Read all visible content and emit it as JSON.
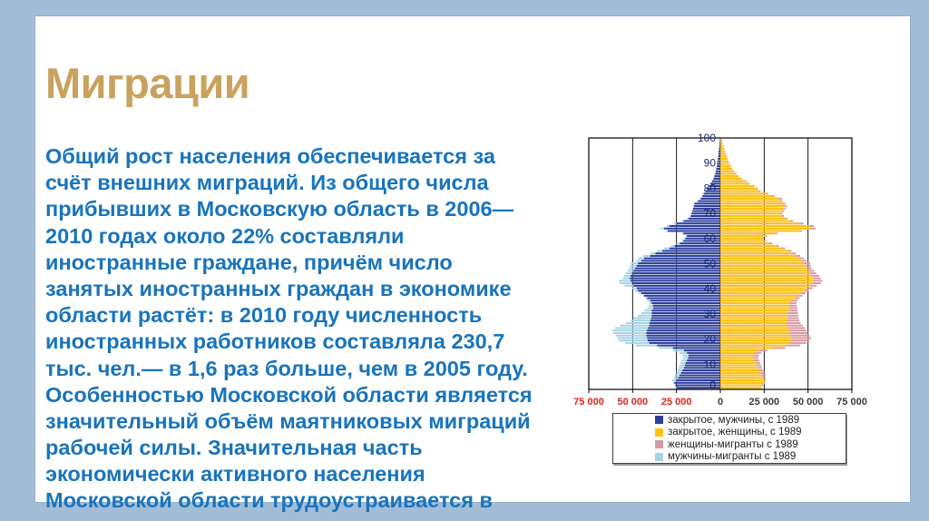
{
  "slide": {
    "title": "Миграции",
    "body_lines": [
      "Общий рост населения обеспечивается за",
      "счёт внешних миграций. Из общего числа",
      "прибывших в Московскую область в 2006—",
      "2010 годах около 22% составляли",
      "иностранные граждане, причём число",
      "занятых иностранных граждан в экономике",
      "области растёт: в 2010 году численность",
      "иностранных работников составляла 230,7",
      "тыс. чел.— в 1,6 раз больше, чем в 2005 году.",
      "Особенностью Московской области является",
      "значительный объём маятниковых миграций",
      "рабочей силы. Значительная часть",
      "экономически активного населения",
      "Московской области трудоустраивается в"
    ],
    "colors": {
      "background": "#A4BDD7",
      "card": "#FFFFFF",
      "title_text": "#C9A35E",
      "body_text": "#1874BC"
    }
  },
  "chart_data": {
    "type": "bar",
    "subtype": "population_pyramid",
    "orientation": "horizontal",
    "title": "",
    "xlabel": "",
    "ylabel": "",
    "grid": true,
    "legend_position": "bottom",
    "xlim": [
      -75000,
      75000
    ],
    "x_tick_values": [
      -75000,
      -50000,
      -25000,
      0,
      25000,
      50000,
      75000
    ],
    "x_tick_labels": [
      "75 000",
      "50 000",
      "25 000",
      "0",
      "25 000",
      "50 000",
      "75 000"
    ],
    "x_tick_colors": [
      "#E0251B",
      "#E0251B",
      "#E0251B",
      "#3A3A3A",
      "#3A3A3A",
      "#3A3A3A",
      "#3A3A3A"
    ],
    "age_axis_range": [
      0,
      100
    ],
    "age_tick_values": [
      0,
      10,
      20,
      30,
      40,
      50,
      60,
      70,
      80,
      90,
      100
    ],
    "age_tick_color": "#1C2C6B",
    "ages": [
      0,
      1,
      2,
      3,
      4,
      5,
      6,
      7,
      8,
      9,
      10,
      11,
      12,
      13,
      14,
      15,
      16,
      17,
      18,
      19,
      20,
      21,
      22,
      23,
      24,
      25,
      26,
      27,
      28,
      29,
      30,
      31,
      32,
      33,
      34,
      35,
      36,
      37,
      38,
      39,
      40,
      41,
      42,
      43,
      44,
      45,
      46,
      47,
      48,
      49,
      50,
      51,
      52,
      53,
      54,
      55,
      56,
      57,
      58,
      59,
      60,
      61,
      62,
      63,
      64,
      65,
      66,
      67,
      68,
      69,
      70,
      71,
      72,
      73,
      74,
      75,
      76,
      77,
      78,
      79,
      80,
      81,
      82,
      83,
      84,
      85,
      86,
      87,
      88,
      89,
      90,
      91,
      92,
      93,
      94,
      95,
      96,
      97,
      98,
      99,
      100
    ],
    "series": [
      {
        "name": "закрытое, мужчины, с 1989",
        "side": "left",
        "stack": "base",
        "color": "#2E3D9C",
        "values": [
          25000,
          25500,
          26200,
          25000,
          24100,
          23300,
          22400,
          21600,
          20700,
          20200,
          19800,
          19000,
          18400,
          18100,
          19000,
          20700,
          27000,
          36000,
          40500,
          41400,
          41700,
          42200,
          42200,
          41800,
          41200,
          40500,
          40300,
          39900,
          39400,
          39100,
          39100,
          39100,
          38200,
          38500,
          39100,
          39900,
          41700,
          43400,
          45100,
          46900,
          47700,
          49500,
          50300,
          51200,
          51600,
          51200,
          50300,
          49500,
          48600,
          47700,
          46900,
          45000,
          43400,
          40000,
          37000,
          33000,
          29000,
          26000,
          23000,
          21000,
          19800,
          19000,
          21000,
          30000,
          32000,
          29000,
          25000,
          21000,
          18100,
          16800,
          16400,
          15900,
          15500,
          15000,
          14700,
          12800,
          11200,
          10200,
          9500,
          8300,
          7800,
          6300,
          5700,
          4700,
          3900,
          3400,
          2900,
          2600,
          2300,
          2000,
          1900,
          1650,
          1450,
          1250,
          1100,
          1000,
          750,
          550,
          400,
          300,
          200
        ]
      },
      {
        "name": "закрытое, женщины, с 1989",
        "side": "right",
        "stack": "base",
        "color": "#FFC20D",
        "values": [
          23300,
          24000,
          25000,
          25300,
          24500,
          23800,
          22800,
          22000,
          21600,
          20800,
          20200,
          19500,
          19000,
          19200,
          19800,
          21600,
          30200,
          37100,
          39700,
          40500,
          40500,
          40000,
          39500,
          39000,
          38800,
          38300,
          37900,
          38000,
          38200,
          38500,
          38700,
          38900,
          39100,
          39500,
          39900,
          40800,
          42500,
          44200,
          46000,
          47800,
          49500,
          51200,
          52900,
          53300,
          52900,
          52100,
          51200,
          50300,
          49500,
          48600,
          47700,
          46400,
          45100,
          43000,
          41000,
          38800,
          35300,
          31900,
          28400,
          25000,
          24100,
          25900,
          31900,
          45700,
          51700,
          50900,
          45700,
          40000,
          37100,
          35300,
          34500,
          35300,
          36200,
          37100,
          36200,
          34500,
          32800,
          30200,
          26700,
          22400,
          20700,
          19000,
          16500,
          14700,
          12000,
          10300,
          9200,
          7800,
          6700,
          5800,
          5200,
          4500,
          3900,
          3400,
          3000,
          2600,
          2100,
          1700,
          1300,
          1000,
          600
        ]
      },
      {
        "name": "женщины-мигранты с 1989",
        "side": "right",
        "stack": "migrant",
        "color": "#D79AA5",
        "values": [
          200,
          300,
          400,
          500,
          1400,
          2100,
          2200,
          2400,
          2200,
          2500,
          2600,
          2700,
          2600,
          2800,
          3500,
          5100,
          6900,
          8600,
          9400,
          10400,
          11200,
          10900,
          10500,
          10100,
          9500,
          8700,
          7800,
          7100,
          6400,
          5900,
          5600,
          5200,
          4800,
          4100,
          3500,
          3100,
          2600,
          2600,
          2600,
          2500,
          3100,
          3700,
          4400,
          4900,
          4400,
          4300,
          3500,
          3100,
          2600,
          3000,
          3500,
          2600,
          2600,
          2500,
          2000,
          1700,
          1600,
          1400,
          1100,
          1000,
          700,
          600,
          600,
          800,
          2600,
          2500,
          1800,
          1500,
          1100,
          1000,
          900,
          900,
          900,
          900,
          900,
          800,
          2500,
          800,
          700,
          600,
          500,
          400,
          300,
          300,
          200,
          200,
          200,
          200,
          200,
          200,
          200,
          200,
          200,
          200,
          100,
          100,
          100,
          100,
          100,
          100,
          100
        ]
      },
      {
        "name": "мужчины-мигранты с 1989",
        "side": "left",
        "stack": "migrant",
        "color": "#A6D3E2",
        "values": [
          500,
          500,
          600,
          2600,
          2400,
          2600,
          2600,
          2700,
          3100,
          3100,
          3000,
          3100,
          2800,
          3500,
          4300,
          6000,
          8000,
          12000,
          13800,
          16400,
          16900,
          17300,
          18800,
          19700,
          18800,
          16500,
          13700,
          11100,
          10100,
          7800,
          6000,
          4300,
          3500,
          2300,
          1400,
          1800,
          1100,
          600,
          1300,
          1700,
          2600,
          5200,
          7000,
          6600,
          4000,
          3800,
          3500,
          3500,
          3500,
          3800,
          4000,
          3000,
          3500,
          4000,
          3000,
          3000,
          3000,
          2000,
          2000,
          1000,
          700,
          800,
          1000,
          1000,
          2000,
          1500,
          1500,
          1000,
          900,
          400,
          400,
          300,
          300,
          200,
          300,
          200,
          300,
          200,
          200,
          200,
          100,
          200,
          100,
          100,
          100,
          100,
          100,
          100,
          100,
          100,
          100,
          100,
          100,
          50,
          50,
          50,
          50,
          50,
          50,
          50,
          50
        ]
      }
    ],
    "legend_entries_order": [
      0,
      1,
      2,
      3
    ]
  }
}
